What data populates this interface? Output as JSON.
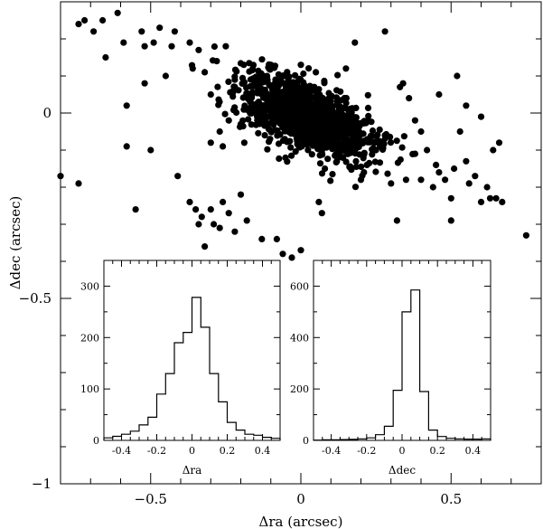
{
  "chart_data": [
    {
      "type": "scatter",
      "xlabel": "Δra (arcsec)",
      "ylabel": "Δdec (arcsec)",
      "xlim": [
        -0.8,
        0.8
      ],
      "ylim": [
        -1.0,
        0.3
      ],
      "x_ticks": [
        -0.5,
        0,
        0.5
      ],
      "x_tick_labels": [
        "−0.5",
        "0",
        "0.5"
      ],
      "y_ticks": [
        -1,
        -0.5,
        0
      ],
      "y_tick_labels": [
        "−1",
        "−0.5",
        "0"
      ],
      "marker_color": "#000000",
      "dense_cluster": {
        "x_center": 0.02,
        "y_center": -0.01,
        "x_spread": 0.11,
        "y_spread": 0.045,
        "slope": -0.28,
        "n_points": 1150
      },
      "points": [
        [
          -0.8,
          -0.17
        ],
        [
          -0.74,
          -0.19
        ],
        [
          -0.74,
          0.24
        ],
        [
          -0.72,
          0.25
        ],
        [
          -0.69,
          0.22
        ],
        [
          -0.66,
          0.25
        ],
        [
          -0.65,
          0.15
        ],
        [
          -0.61,
          0.27
        ],
        [
          -0.59,
          0.19
        ],
        [
          -0.58,
          0.02
        ],
        [
          -0.58,
          -0.09
        ],
        [
          -0.55,
          -0.26
        ],
        [
          -0.53,
          0.22
        ],
        [
          -0.52,
          0.18
        ],
        [
          -0.52,
          0.08
        ],
        [
          -0.5,
          -0.1
        ],
        [
          -0.49,
          0.19
        ],
        [
          -0.47,
          0.23
        ],
        [
          -0.45,
          0.1
        ],
        [
          -0.43,
          0.18
        ],
        [
          -0.42,
          0.22
        ],
        [
          -0.41,
          -0.17
        ],
        [
          -0.37,
          0.19
        ],
        [
          -0.36,
          0.12
        ],
        [
          -0.34,
          0.17
        ],
        [
          -0.32,
          0.11
        ],
        [
          -0.3,
          -0.08
        ],
        [
          -0.3,
          0.05
        ],
        [
          -0.28,
          0.14
        ],
        [
          -0.27,
          -0.05
        ],
        [
          -0.26,
          -0.09
        ],
        [
          -0.25,
          0.18
        ],
        [
          -0.24,
          -0.02
        ],
        [
          -0.22,
          0.09
        ],
        [
          -0.2,
          -0.03
        ],
        [
          -0.19,
          0.13
        ],
        [
          -0.16,
          0.02
        ],
        [
          -0.14,
          0.1
        ],
        [
          -0.12,
          -0.06
        ],
        [
          -0.1,
          0.13
        ],
        [
          -0.07,
          0.01
        ],
        [
          -0.05,
          0.1
        ],
        [
          0.0,
          0.13
        ],
        [
          0.05,
          0.11
        ],
        [
          0.08,
          -0.15
        ],
        [
          0.12,
          -0.13
        ],
        [
          0.15,
          0.12
        ],
        [
          0.18,
          0.19
        ],
        [
          0.2,
          -0.18
        ],
        [
          0.22,
          -0.14
        ],
        [
          0.25,
          -0.1
        ],
        [
          0.28,
          -0.06
        ],
        [
          0.3,
          -0.19
        ],
        [
          0.33,
          0.07
        ],
        [
          0.35,
          -0.18
        ],
        [
          0.38,
          -0.11
        ],
        [
          0.4,
          -0.18
        ],
        [
          0.42,
          -0.1
        ],
        [
          0.44,
          -0.2
        ],
        [
          0.46,
          -0.16
        ],
        [
          0.48,
          -0.18
        ],
        [
          0.5,
          -0.23
        ],
        [
          0.51,
          -0.15
        ],
        [
          0.53,
          -0.05
        ],
        [
          0.55,
          -0.13
        ],
        [
          0.56,
          -0.19
        ],
        [
          0.58,
          -0.17
        ],
        [
          0.6,
          -0.24
        ],
        [
          0.62,
          -0.2
        ],
        [
          0.63,
          -0.23
        ],
        [
          0.65,
          -0.23
        ],
        [
          0.66,
          -0.08
        ],
        [
          0.67,
          -0.24
        ],
        [
          0.75,
          -0.33
        ],
        [
          -0.37,
          -0.24
        ],
        [
          -0.35,
          -0.26
        ],
        [
          -0.34,
          -0.3
        ],
        [
          -0.33,
          -0.28
        ],
        [
          -0.3,
          -0.26
        ],
        [
          -0.29,
          -0.3
        ],
        [
          -0.27,
          -0.31
        ],
        [
          -0.24,
          -0.27
        ],
        [
          -0.2,
          -0.22
        ],
        [
          -0.18,
          -0.29
        ],
        [
          -0.13,
          -0.34
        ],
        [
          -0.32,
          -0.36
        ],
        [
          -0.26,
          -0.24
        ],
        [
          -0.22,
          -0.32
        ],
        [
          -0.08,
          -0.34
        ],
        [
          0.0,
          -0.37
        ],
        [
          0.07,
          -0.27
        ],
        [
          0.06,
          -0.24
        ],
        [
          0.21,
          -0.16
        ],
        [
          0.45,
          -0.14
        ],
        [
          -0.03,
          -0.39
        ],
        [
          -0.06,
          -0.38
        ],
        [
          0.5,
          -0.29
        ],
        [
          0.45,
          -0.45
        ],
        [
          0.32,
          -0.29
        ],
        [
          0.28,
          0.22
        ],
        [
          0.34,
          0.08
        ],
        [
          0.4,
          -0.05
        ],
        [
          0.46,
          0.05
        ],
        [
          0.52,
          0.1
        ],
        [
          0.55,
          0.02
        ],
        [
          0.6,
          -0.01
        ],
        [
          0.64,
          -0.1
        ],
        [
          0.36,
          0.04
        ],
        [
          0.38,
          -0.02
        ]
      ]
    },
    {
      "type": "bar",
      "xlabel": "Δra",
      "ylabel": "",
      "xlim": [
        -0.5,
        0.5
      ],
      "ylim": [
        0,
        350
      ],
      "x_ticks": [
        -0.4,
        -0.2,
        0,
        0.2,
        0.4
      ],
      "x_tick_labels": [
        "-0.4",
        "-0.2",
        "0",
        "0.2",
        "0.4"
      ],
      "y_ticks": [
        0,
        100,
        200,
        300
      ],
      "y_tick_labels": [
        "0",
        "100",
        "200",
        "300"
      ],
      "bin_edges": [
        -0.5,
        -0.45,
        -0.4,
        -0.35,
        -0.3,
        -0.25,
        -0.2,
        -0.15,
        -0.1,
        -0.05,
        0.0,
        0.05,
        0.1,
        0.15,
        0.2,
        0.25,
        0.3,
        0.35,
        0.4,
        0.45,
        0.5
      ],
      "values": [
        5,
        8,
        12,
        18,
        30,
        45,
        90,
        130,
        190,
        210,
        278,
        220,
        130,
        75,
        35,
        20,
        12,
        10,
        6,
        4
      ]
    },
    {
      "type": "bar",
      "xlabel": "Δdec",
      "ylabel": "",
      "xlim": [
        -0.5,
        0.5
      ],
      "ylim": [
        0,
        700
      ],
      "x_ticks": [
        -0.4,
        -0.2,
        0,
        0.2,
        0.4
      ],
      "x_tick_labels": [
        "-0.4",
        "-0.2",
        "0",
        "0.2",
        "0.4"
      ],
      "y_ticks": [
        0,
        200,
        400,
        600
      ],
      "y_tick_labels": [
        "0",
        "200",
        "400",
        "600"
      ],
      "bin_edges": [
        -0.5,
        -0.45,
        -0.4,
        -0.35,
        -0.3,
        -0.25,
        -0.2,
        -0.15,
        -0.1,
        -0.05,
        0.0,
        0.05,
        0.1,
        0.15,
        0.2,
        0.25,
        0.3,
        0.35,
        0.4,
        0.45,
        0.5
      ],
      "values": [
        1,
        2,
        2,
        3,
        4,
        6,
        10,
        22,
        55,
        195,
        500,
        585,
        190,
        40,
        15,
        8,
        6,
        5,
        5,
        6
      ]
    }
  ]
}
